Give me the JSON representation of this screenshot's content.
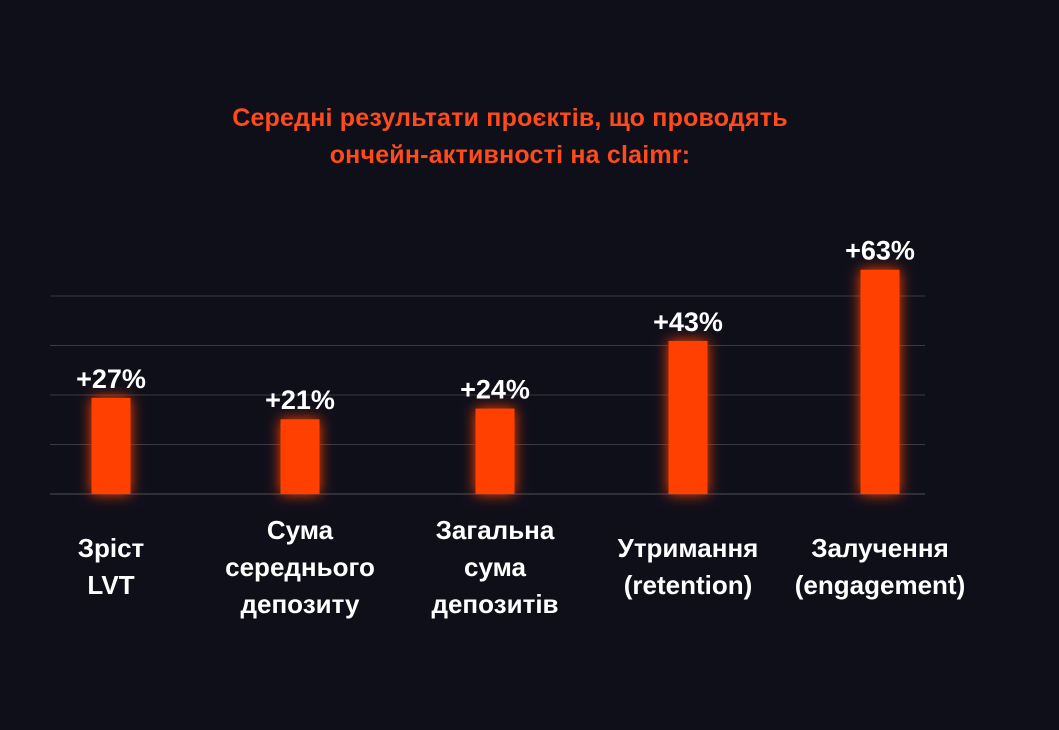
{
  "title": {
    "lines": [
      "Середні результати проєктів, що проводять",
      "ончейн-активності на claimr:"
    ]
  },
  "colors": {
    "background": "#0f0f1a",
    "accent": "#ff4000",
    "title": "#ff4a1c",
    "text": "#ffffff",
    "grid": "#3a3a44"
  },
  "chart_data": {
    "type": "bar",
    "categories": [
      [
        "Зріст",
        "LVT"
      ],
      [
        "Сума",
        "середнього",
        "депозиту"
      ],
      [
        "Загальна",
        "сума",
        "депозитів"
      ],
      [
        "Утримання",
        "(retention)"
      ],
      [
        "Залучення",
        "(engagement)"
      ]
    ],
    "values": [
      27,
      21,
      24,
      43,
      63
    ],
    "data_labels": [
      "+27%",
      "+21%",
      "+24%",
      "+43%",
      "+63%"
    ],
    "title": "Середні результати проєктів, що проводять ончейн-активності на claimr:",
    "xlabel": "",
    "ylabel": "",
    "ylim": [
      0,
      60
    ],
    "grid": true,
    "legend": "none"
  }
}
